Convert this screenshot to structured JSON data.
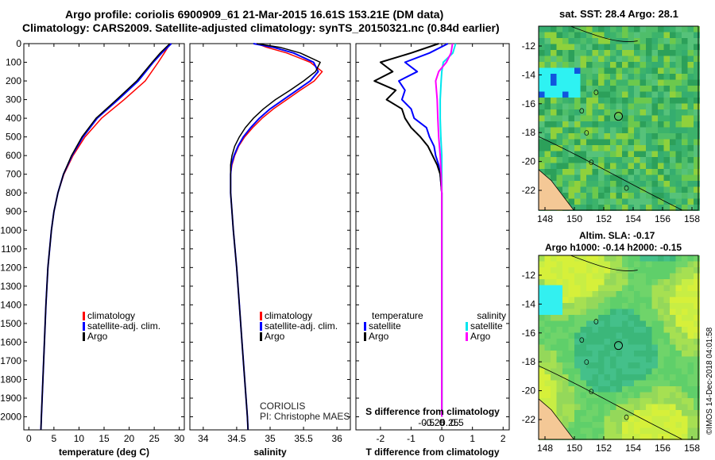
{
  "header": {
    "title_line1": "Argo profile: coriolis 6900909_61 21-Mar-2015 16.61S 153.21E (DM data)",
    "title_line2": "Climatology: CARS2009. Satellite-adjusted climatology: synTS_20150321.nc (0.84d earlier)"
  },
  "colors": {
    "climatology": "#ff0000",
    "satellite": "#0000ff",
    "argo": "#000000",
    "sal_sat": "#00e5ee",
    "sal_clim": "#ff00ff",
    "land": "#f4c896"
  },
  "chart_data": [
    {
      "type": "line",
      "id": "temperature",
      "xlabel": "temperature (deg C)",
      "ylabel": "",
      "xlim": [
        -1,
        31
      ],
      "ylim": [
        2070,
        0
      ],
      "xticks": [
        0,
        5,
        10,
        15,
        20,
        25,
        30
      ],
      "yticks": [
        0,
        100,
        200,
        300,
        400,
        500,
        600,
        700,
        800,
        900,
        1000,
        1100,
        1200,
        1300,
        1400,
        1500,
        1600,
        1700,
        1800,
        1900,
        2000
      ],
      "legend": [
        "climatology",
        "satellite-adj. clim.",
        "Argo"
      ],
      "series": [
        {
          "name": "climatology",
          "depth": [
            0,
            50,
            100,
            200,
            300,
            400,
            500,
            600,
            700,
            800,
            900,
            1000,
            1200,
            1400,
            1600,
            1800,
            2000,
            2070
          ],
          "values": [
            28.2,
            27.0,
            25.8,
            23.2,
            19.0,
            14.5,
            11.2,
            8.8,
            7.0,
            5.8,
            5.0,
            4.5,
            3.8,
            3.4,
            3.1,
            2.8,
            2.5,
            2.4
          ]
        },
        {
          "name": "satellite-adj. clim.",
          "depth": [
            0,
            50,
            100,
            200,
            300,
            400,
            500,
            600,
            700,
            800,
            900,
            1000,
            1200,
            1400,
            1600,
            1800,
            2000,
            2070
          ],
          "values": [
            28.4,
            26.5,
            24.8,
            21.8,
            17.8,
            13.6,
            10.8,
            8.6,
            6.9,
            5.8,
            5.0,
            4.5,
            3.8,
            3.4,
            3.1,
            2.8,
            2.5,
            2.4
          ]
        },
        {
          "name": "Argo",
          "depth": [
            0,
            50,
            100,
            200,
            300,
            400,
            500,
            600,
            700,
            800,
            900,
            1000,
            1200,
            1400,
            1600,
            1800,
            2000,
            2070
          ],
          "values": [
            28.1,
            26.2,
            24.6,
            21.5,
            17.5,
            13.4,
            10.6,
            8.5,
            6.9,
            5.8,
            5.0,
            4.5,
            3.8,
            3.4,
            3.1,
            2.8,
            2.5,
            2.4
          ]
        }
      ]
    },
    {
      "type": "line",
      "id": "salinity",
      "xlabel": "salinity",
      "xlim": [
        33.8,
        36.2
      ],
      "ylim": [
        2070,
        0
      ],
      "xticks": [
        34,
        34.5,
        35,
        35.5,
        36
      ],
      "legend": [
        "climatology",
        "satellite-adj. clim.",
        "Argo"
      ],
      "annotation": [
        "CORIOLIS",
        "PI: Christophe MAES"
      ],
      "series": [
        {
          "name": "climatology",
          "depth": [
            0,
            20,
            50,
            100,
            150,
            200,
            250,
            300,
            350,
            400,
            450,
            500,
            550,
            600,
            650,
            700,
            800,
            900,
            1000,
            1200,
            1400,
            1600,
            1800,
            2000,
            2070
          ],
          "values": [
            34.8,
            34.95,
            35.25,
            35.6,
            35.78,
            35.66,
            35.45,
            35.25,
            35.05,
            34.88,
            34.74,
            34.62,
            34.53,
            34.47,
            34.43,
            34.41,
            34.41,
            34.43,
            34.45,
            34.5,
            34.54,
            34.58,
            34.62,
            34.66,
            34.67
          ]
        },
        {
          "name": "satellite-adj. clim.",
          "depth": [
            0,
            20,
            50,
            100,
            150,
            200,
            250,
            300,
            350,
            400,
            450,
            500,
            550,
            600,
            650,
            700,
            800,
            900,
            1000,
            1200,
            1400,
            1600,
            1800,
            2000,
            2070
          ],
          "values": [
            34.75,
            35.05,
            35.35,
            35.65,
            35.72,
            35.6,
            35.4,
            35.2,
            35.0,
            34.84,
            34.71,
            34.6,
            34.52,
            34.46,
            34.42,
            34.41,
            34.41,
            34.43,
            34.45,
            34.5,
            34.54,
            34.58,
            34.62,
            34.66,
            34.67
          ]
        },
        {
          "name": "Argo",
          "depth": [
            0,
            20,
            50,
            100,
            150,
            200,
            250,
            300,
            350,
            400,
            450,
            500,
            550,
            600,
            650,
            700,
            800,
            900,
            1000,
            1200,
            1400,
            1600,
            1800,
            2000,
            2070
          ],
          "values": [
            34.8,
            35.15,
            35.45,
            35.75,
            35.68,
            35.5,
            35.3,
            35.08,
            34.9,
            34.75,
            34.63,
            34.54,
            34.47,
            34.43,
            34.41,
            34.41,
            34.41,
            34.43,
            34.45,
            34.5,
            34.54,
            34.58,
            34.62,
            34.66,
            34.67
          ]
        }
      ]
    },
    {
      "type": "line",
      "id": "difference",
      "xlabel": "T difference from climatology",
      "title_top": "S difference from climatology",
      "xlim": [
        -2.8,
        2.2
      ],
      "ylim": [
        2070,
        0
      ],
      "xticks": [
        -2,
        -1,
        0,
        1,
        2
      ],
      "xticklabels": [
        "-2",
        "-1",
        "0",
        "1",
        "2"
      ],
      "top_ticks": [
        -0.5,
        -0.25,
        0,
        0.25,
        0.5
      ],
      "top_ticklabels": [
        "-0.5",
        "-0.25",
        "0",
        "0.25",
        "0.5"
      ],
      "legend_t": {
        "title": "temperature",
        "items": [
          "satellite",
          "Argo"
        ]
      },
      "legend_s": {
        "title": "salinity",
        "items": [
          "satellite",
          "Argo"
        ]
      },
      "series": [
        {
          "name": "T satellite",
          "axis": "T",
          "depth": [
            0,
            50,
            100,
            150,
            200,
            250,
            300,
            350,
            400,
            450,
            500,
            550,
            600,
            650,
            700,
            800,
            1000,
            1200,
            1500,
            2000
          ],
          "values": [
            0.2,
            -0.4,
            -1.2,
            -0.8,
            -1.4,
            -1.2,
            -1.3,
            -1.0,
            -0.9,
            -0.5,
            -0.4,
            -0.25,
            -0.2,
            -0.1,
            -0.05,
            0,
            0,
            0,
            0,
            0
          ]
        },
        {
          "name": "T Argo",
          "axis": "T",
          "depth": [
            0,
            50,
            100,
            150,
            200,
            250,
            300,
            350,
            400,
            450,
            500,
            550,
            600,
            650,
            700,
            800,
            1000,
            1200,
            1500,
            2000
          ],
          "values": [
            -0.1,
            -1.0,
            -2.0,
            -1.6,
            -2.2,
            -1.5,
            -1.8,
            -1.3,
            -1.2,
            -1.0,
            -0.7,
            -0.45,
            -0.3,
            -0.15,
            -0.05,
            0,
            0,
            0,
            0,
            0
          ]
        },
        {
          "name": "S satellite",
          "axis": "S",
          "depth": [
            0,
            50,
            100,
            150,
            200,
            300,
            400,
            500,
            600,
            700,
            800,
            1000,
            1200,
            1500,
            2000
          ],
          "values": [
            0.45,
            0.36,
            0.05,
            0.0,
            -0.02,
            -0.05,
            -0.05,
            -0.03,
            0.0,
            0.0,
            0.0,
            0.0,
            0.0,
            0.0,
            0.0
          ]
        },
        {
          "name": "S Argo",
          "axis": "S",
          "depth": [
            0,
            50,
            100,
            150,
            200,
            300,
            400,
            500,
            600,
            700,
            800,
            1000,
            1200,
            1500,
            2000
          ],
          "values": [
            0.35,
            0.3,
            0.15,
            -0.1,
            -0.2,
            -0.15,
            -0.13,
            -0.1,
            -0.05,
            -0.02,
            0.0,
            0.0,
            0.0,
            0.0,
            0.0
          ]
        }
      ]
    }
  ],
  "maps": {
    "sst": {
      "title": "sat. SST: 28.4 Argo: 28.1",
      "lat_ticks": [
        "-12",
        "-14",
        "-16",
        "-18",
        "-20",
        "-22"
      ],
      "lon_ticks": [
        "148",
        "150",
        "152",
        "154",
        "156",
        "158"
      ]
    },
    "sla": {
      "title_line1": "Altim. SLA: -0.17",
      "title_line2": "Argo h1000: -0.14 h2000: -0.15",
      "lat_ticks": [
        "-12",
        "-14",
        "-16",
        "-18",
        "-20",
        "-22"
      ],
      "lon_ticks": [
        "148",
        "150",
        "152",
        "154",
        "156",
        "158"
      ]
    }
  },
  "footer": {
    "side_text": "©IMOS 14-Dec-2018 04:01:58"
  }
}
